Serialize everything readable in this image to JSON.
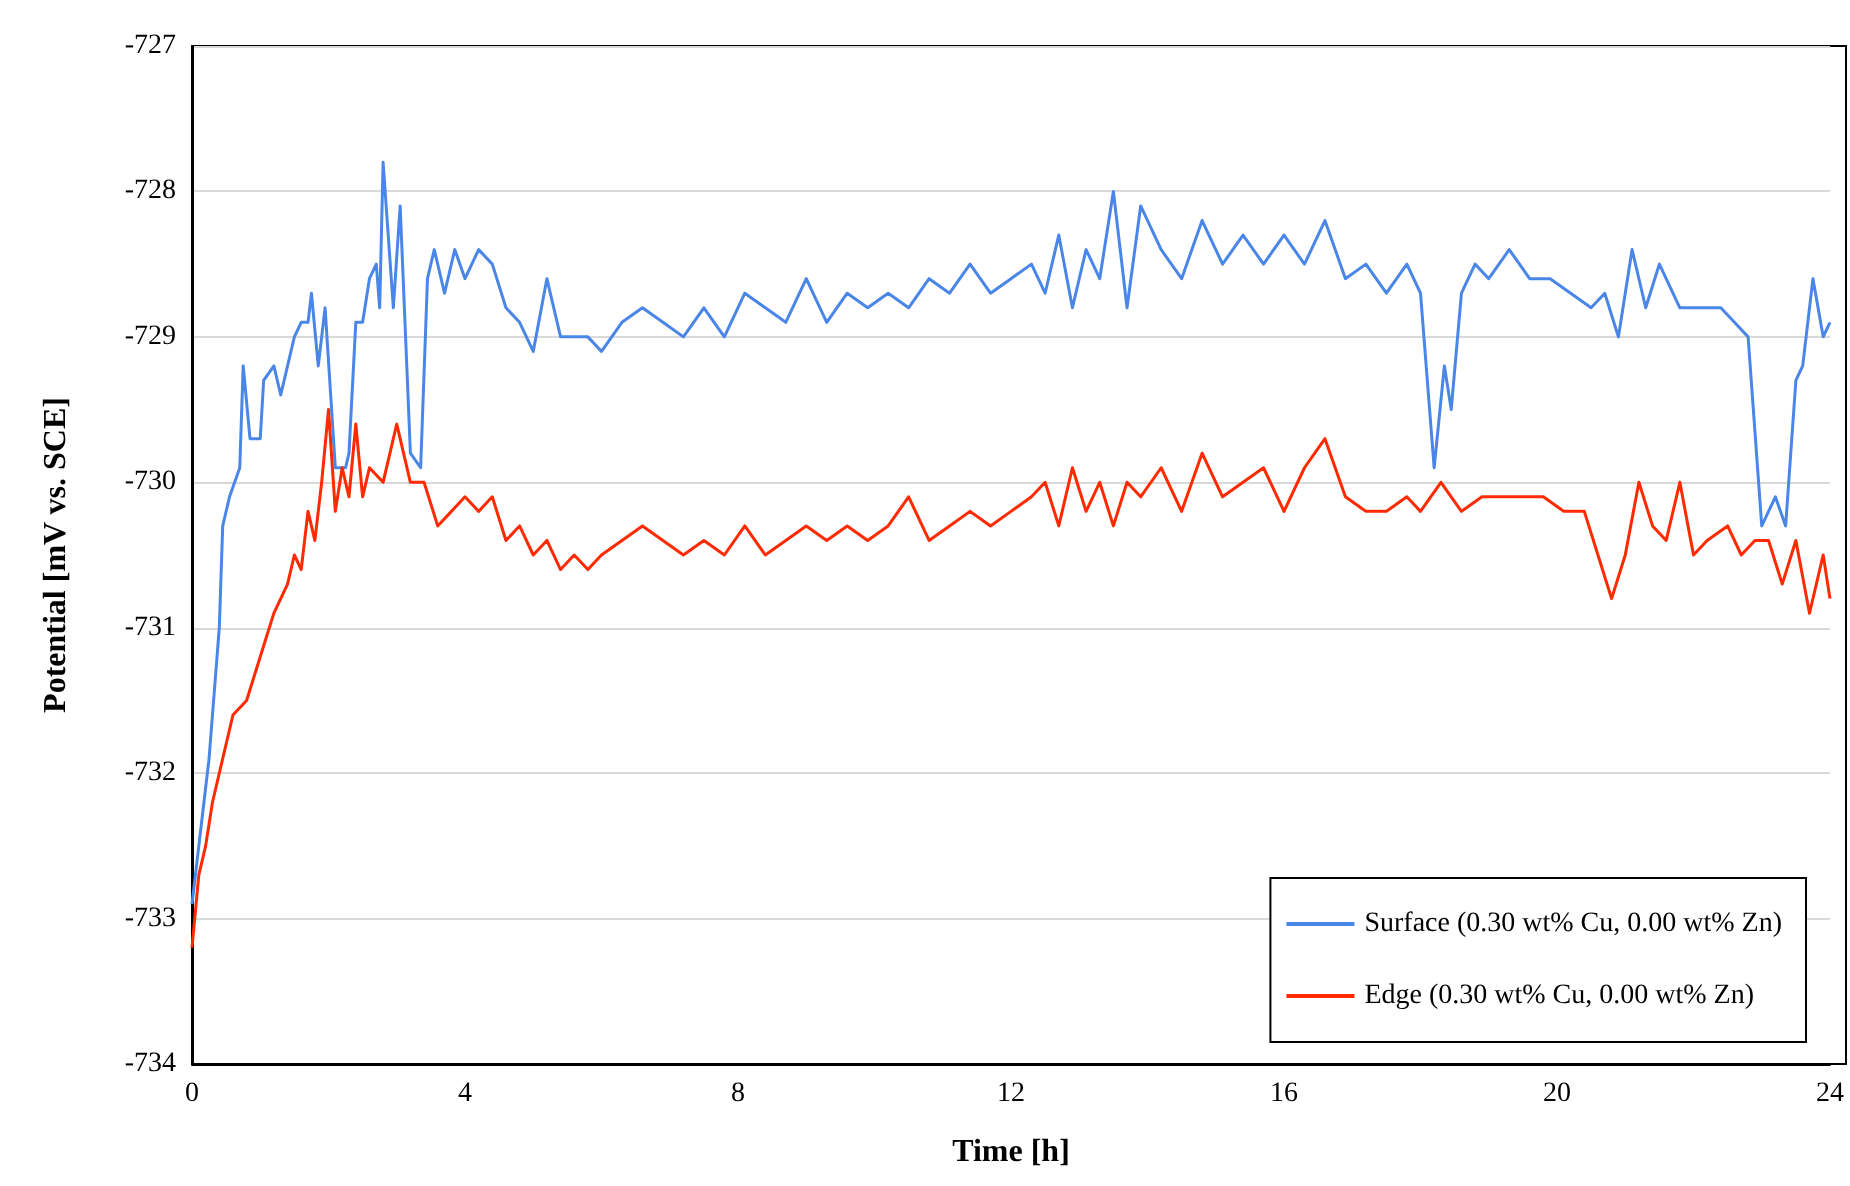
{
  "chart_data": {
    "type": "line",
    "xlabel": "Time [h]",
    "ylabel": "Potential [mV vs. SCE]",
    "xlim": [
      0,
      24
    ],
    "xticks": [
      0,
      4,
      8,
      12,
      16,
      20,
      24
    ],
    "ylim": [
      -734,
      -727
    ],
    "yticks": [
      -734,
      -733,
      -732,
      -731,
      -730,
      -729,
      -728,
      -727
    ],
    "grid": "y",
    "legend": "bottom right",
    "marker": "none",
    "line_style": "solid",
    "series": [
      {
        "name": "Surface (0.30 wt% Cu, 0.00 wt% Zn)",
        "color": "#4a86e8",
        "x": [
          0,
          0.1,
          0.25,
          0.4,
          0.45,
          0.55,
          0.7,
          0.75,
          0.85,
          1.0,
          1.05,
          1.2,
          1.3,
          1.4,
          1.5,
          1.6,
          1.7,
          1.75,
          1.85,
          1.95,
          2.1,
          2.25,
          2.3,
          2.4,
          2.5,
          2.6,
          2.7,
          2.75,
          2.8,
          2.95,
          3.05,
          3.2,
          3.35,
          3.45,
          3.55,
          3.7,
          3.85,
          4.0,
          4.2,
          4.4,
          4.6,
          4.8,
          5.0,
          5.2,
          5.4,
          5.6,
          5.8,
          6.0,
          6.3,
          6.6,
          6.9,
          7.2,
          7.5,
          7.8,
          8.1,
          8.4,
          8.7,
          9.0,
          9.3,
          9.6,
          9.9,
          10.2,
          10.5,
          10.8,
          11.1,
          11.4,
          11.7,
          12.0,
          12.3,
          12.5,
          12.7,
          12.9,
          13.1,
          13.3,
          13.5,
          13.7,
          13.9,
          14.2,
          14.5,
          14.8,
          15.1,
          15.4,
          15.7,
          16.0,
          16.3,
          16.6,
          16.9,
          17.2,
          17.5,
          17.8,
          18.0,
          18.2,
          18.35,
          18.45,
          18.6,
          18.8,
          19.0,
          19.3,
          19.6,
          19.9,
          20.2,
          20.5,
          20.7,
          20.9,
          21.1,
          21.3,
          21.5,
          21.8,
          22.1,
          22.4,
          22.6,
          22.8,
          23.0,
          23.2,
          23.35,
          23.5,
          23.6,
          23.75,
          23.9,
          24
        ],
        "values": [
          -732.9,
          -732.5,
          -731.9,
          -731.0,
          -730.3,
          -730.1,
          -729.9,
          -729.2,
          -729.7,
          -729.7,
          -729.3,
          -729.2,
          -729.4,
          -729.2,
          -729.0,
          -728.9,
          -728.9,
          -728.7,
          -729.2,
          -728.8,
          -729.9,
          -729.9,
          -729.8,
          -728.9,
          -728.9,
          -728.6,
          -728.5,
          -728.8,
          -727.8,
          -728.8,
          -728.1,
          -729.8,
          -729.9,
          -728.6,
          -728.4,
          -728.7,
          -728.4,
          -728.6,
          -728.4,
          -728.5,
          -728.8,
          -728.9,
          -729.1,
          -728.6,
          -729.0,
          -729.0,
          -729.0,
          -729.1,
          -728.9,
          -728.8,
          -728.9,
          -729.0,
          -728.8,
          -729.0,
          -728.7,
          -728.8,
          -728.9,
          -728.6,
          -728.9,
          -728.7,
          -728.8,
          -728.7,
          -728.8,
          -728.6,
          -728.7,
          -728.5,
          -728.7,
          -728.6,
          -728.5,
          -728.7,
          -728.3,
          -728.8,
          -728.4,
          -728.6,
          -728.0,
          -728.8,
          -728.1,
          -728.4,
          -728.6,
          -728.2,
          -728.5,
          -728.3,
          -728.5,
          -728.3,
          -728.5,
          -728.2,
          -728.6,
          -728.5,
          -728.7,
          -728.5,
          -728.7,
          -729.9,
          -729.2,
          -729.5,
          -728.7,
          -728.5,
          -728.6,
          -728.4,
          -728.6,
          -728.6,
          -728.7,
          -728.8,
          -728.7,
          -729.0,
          -728.4,
          -728.8,
          -728.5,
          -728.8,
          -728.8,
          -728.8,
          -728.9,
          -729.0,
          -730.3,
          -730.1,
          -730.3,
          -729.3,
          -729.2,
          -728.6,
          -729.0,
          -728.9
        ]
      },
      {
        "name": "Edge (0.30 wt% Cu, 0.00 wt% Zn)",
        "color": "#ff2a00",
        "x": [
          0,
          0.1,
          0.2,
          0.3,
          0.45,
          0.6,
          0.8,
          1.0,
          1.2,
          1.4,
          1.5,
          1.6,
          1.7,
          1.8,
          1.9,
          2.0,
          2.1,
          2.2,
          2.3,
          2.4,
          2.5,
          2.6,
          2.8,
          3.0,
          3.2,
          3.4,
          3.6,
          3.8,
          4.0,
          4.2,
          4.4,
          4.6,
          4.8,
          5.0,
          5.2,
          5.4,
          5.6,
          5.8,
          6.0,
          6.3,
          6.6,
          6.9,
          7.2,
          7.5,
          7.8,
          8.1,
          8.4,
          8.7,
          9.0,
          9.3,
          9.6,
          9.9,
          10.2,
          10.5,
          10.8,
          11.1,
          11.4,
          11.7,
          12.0,
          12.3,
          12.5,
          12.7,
          12.9,
          13.1,
          13.3,
          13.5,
          13.7,
          13.9,
          14.2,
          14.5,
          14.8,
          15.1,
          15.4,
          15.7,
          16.0,
          16.3,
          16.6,
          16.9,
          17.2,
          17.5,
          17.8,
          18.0,
          18.3,
          18.6,
          18.9,
          19.2,
          19.5,
          19.8,
          20.1,
          20.4,
          20.6,
          20.8,
          21.0,
          21.2,
          21.4,
          21.6,
          21.8,
          22.0,
          22.2,
          22.5,
          22.7,
          22.9,
          23.1,
          23.3,
          23.5,
          23.7,
          23.9,
          24
        ],
        "values": [
          -733.2,
          -732.7,
          -732.5,
          -732.2,
          -731.9,
          -731.6,
          -731.5,
          -731.2,
          -730.9,
          -730.7,
          -730.5,
          -730.6,
          -730.2,
          -730.4,
          -730.0,
          -729.5,
          -730.2,
          -729.9,
          -730.1,
          -729.6,
          -730.1,
          -729.9,
          -730.0,
          -729.6,
          -730.0,
          -730.0,
          -730.3,
          -730.2,
          -730.1,
          -730.2,
          -730.1,
          -730.4,
          -730.3,
          -730.5,
          -730.4,
          -730.6,
          -730.5,
          -730.6,
          -730.5,
          -730.4,
          -730.3,
          -730.4,
          -730.5,
          -730.4,
          -730.5,
          -730.3,
          -730.5,
          -730.4,
          -730.3,
          -730.4,
          -730.3,
          -730.4,
          -730.3,
          -730.1,
          -730.4,
          -730.3,
          -730.2,
          -730.3,
          -730.2,
          -730.1,
          -730.0,
          -730.3,
          -729.9,
          -730.2,
          -730.0,
          -730.3,
          -730.0,
          -730.1,
          -729.9,
          -730.2,
          -729.8,
          -730.1,
          -730.0,
          -729.9,
          -730.2,
          -729.9,
          -729.7,
          -730.1,
          -730.2,
          -730.2,
          -730.1,
          -730.2,
          -730.0,
          -730.2,
          -730.1,
          -730.1,
          -730.1,
          -730.1,
          -730.2,
          -730.2,
          -730.5,
          -730.8,
          -730.5,
          -730.0,
          -730.3,
          -730.4,
          -730.0,
          -730.5,
          -730.4,
          -730.3,
          -730.5,
          -730.4,
          -730.4,
          -730.7,
          -730.4,
          -730.9,
          -730.5,
          -730.8
        ]
      }
    ]
  }
}
